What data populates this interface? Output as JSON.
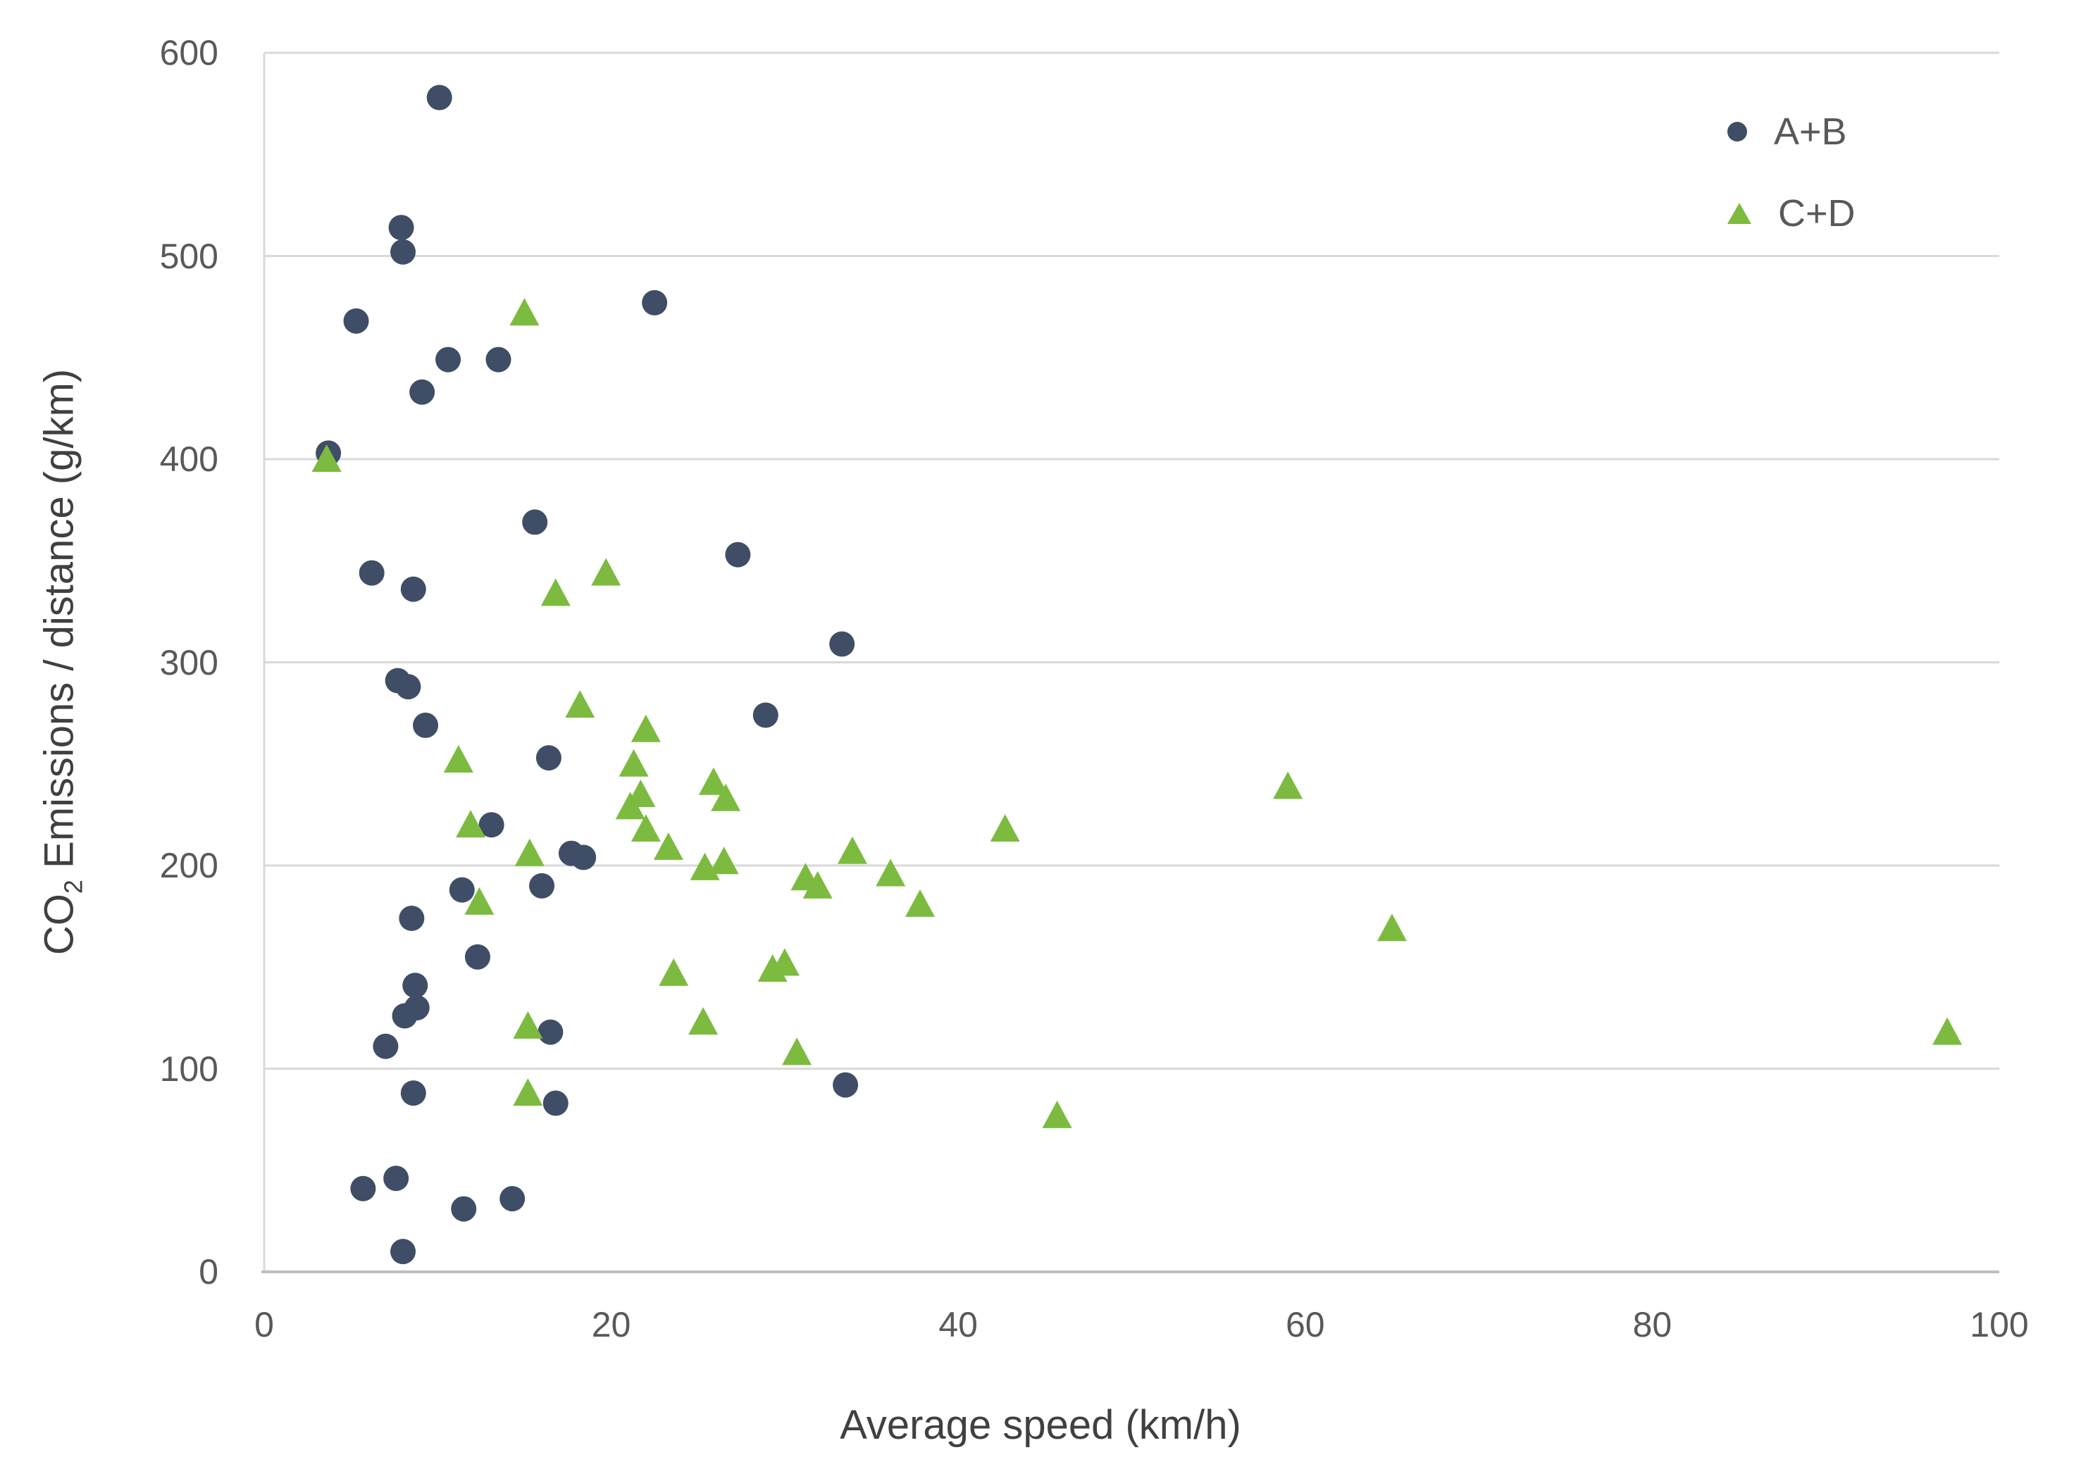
{
  "colors": {
    "series_ab": "#3F4E66",
    "series_cd": "#7CBB3F",
    "gridline": "#D9D9D9",
    "axis_line": "#BFBFBF",
    "tick_text": "#595959",
    "title_text": "#404040",
    "background": "#FFFFFF"
  },
  "labels": {
    "x_title": "Average speed (km/h)",
    "y_title_prefix": "CO",
    "y_title_subscript": "2",
    "y_title_suffix": " Emissions / distance (g/km)"
  },
  "legend": {
    "position": "top-right-inside",
    "items": [
      {
        "label": "A+B",
        "marker": "circle"
      },
      {
        "label": "C+D",
        "marker": "triangle"
      }
    ]
  },
  "chart_data": {
    "type": "scatter",
    "title": "",
    "xlabel": "Average speed (km/h)",
    "ylabel": "CO2 Emissions / distance (g/km)",
    "xlim": [
      0,
      100
    ],
    "ylim": [
      0,
      600
    ],
    "x_ticks": [
      0,
      20,
      40,
      60,
      80,
      100
    ],
    "x_tick_labels": [
      "0",
      "20",
      "40",
      "60",
      "80",
      "100"
    ],
    "y_ticks": [
      0,
      100,
      200,
      300,
      400,
      500,
      600
    ],
    "y_tick_labels": [
      "0",
      "100",
      "200",
      "300",
      "400",
      "500",
      "600"
    ],
    "grid": "horizontal-only",
    "legend_position": "top-right-inside",
    "series": [
      {
        "name": "A+B",
        "marker": "circle",
        "color": "#3F4E66",
        "points": [
          [
            10.1,
            578
          ],
          [
            7.9,
            514
          ],
          [
            8.0,
            502
          ],
          [
            22.5,
            477
          ],
          [
            5.3,
            468
          ],
          [
            10.6,
            449
          ],
          [
            13.5,
            449
          ],
          [
            9.1,
            433
          ],
          [
            3.7,
            403
          ],
          [
            15.6,
            369
          ],
          [
            27.3,
            353
          ],
          [
            6.2,
            344
          ],
          [
            8.6,
            336
          ],
          [
            33.3,
            309
          ],
          [
            7.7,
            291
          ],
          [
            8.3,
            288
          ],
          [
            28.9,
            274
          ],
          [
            9.3,
            269
          ],
          [
            16.4,
            253
          ],
          [
            13.1,
            220
          ],
          [
            17.7,
            206
          ],
          [
            18.4,
            204
          ],
          [
            16.0,
            190
          ],
          [
            11.4,
            188
          ],
          [
            8.5,
            174
          ],
          [
            12.3,
            155
          ],
          [
            8.7,
            141
          ],
          [
            8.8,
            130
          ],
          [
            8.1,
            126
          ],
          [
            16.5,
            118
          ],
          [
            7.0,
            111
          ],
          [
            33.5,
            92
          ],
          [
            8.6,
            88
          ],
          [
            16.8,
            83
          ],
          [
            7.6,
            46
          ],
          [
            5.7,
            41
          ],
          [
            14.3,
            36
          ],
          [
            11.5,
            31
          ],
          [
            8.0,
            10
          ]
        ]
      },
      {
        "name": "C+D",
        "marker": "triangle",
        "color": "#7CBB3F",
        "points": [
          [
            15.0,
            472
          ],
          [
            3.6,
            400
          ],
          [
            19.7,
            344
          ],
          [
            16.8,
            334
          ],
          [
            18.2,
            279
          ],
          [
            22.0,
            267
          ],
          [
            11.2,
            252
          ],
          [
            21.3,
            250
          ],
          [
            25.9,
            241
          ],
          [
            59.0,
            239
          ],
          [
            21.7,
            235
          ],
          [
            26.6,
            233
          ],
          [
            21.1,
            229
          ],
          [
            11.9,
            220
          ],
          [
            22.0,
            218
          ],
          [
            42.7,
            218
          ],
          [
            23.3,
            209
          ],
          [
            33.9,
            207
          ],
          [
            15.3,
            206
          ],
          [
            26.5,
            202
          ],
          [
            25.4,
            199
          ],
          [
            36.1,
            196
          ],
          [
            31.2,
            194
          ],
          [
            31.9,
            190
          ],
          [
            12.4,
            182
          ],
          [
            37.8,
            181
          ],
          [
            65.0,
            169
          ],
          [
            30.0,
            152
          ],
          [
            29.3,
            149
          ],
          [
            23.6,
            147
          ],
          [
            25.3,
            123
          ],
          [
            15.2,
            121
          ],
          [
            97.0,
            118
          ],
          [
            30.7,
            108
          ],
          [
            15.2,
            88
          ],
          [
            45.7,
            77
          ]
        ]
      }
    ]
  },
  "geometry_note": "plot area spans x 0-100 km/h, y 0-600 g/km"
}
